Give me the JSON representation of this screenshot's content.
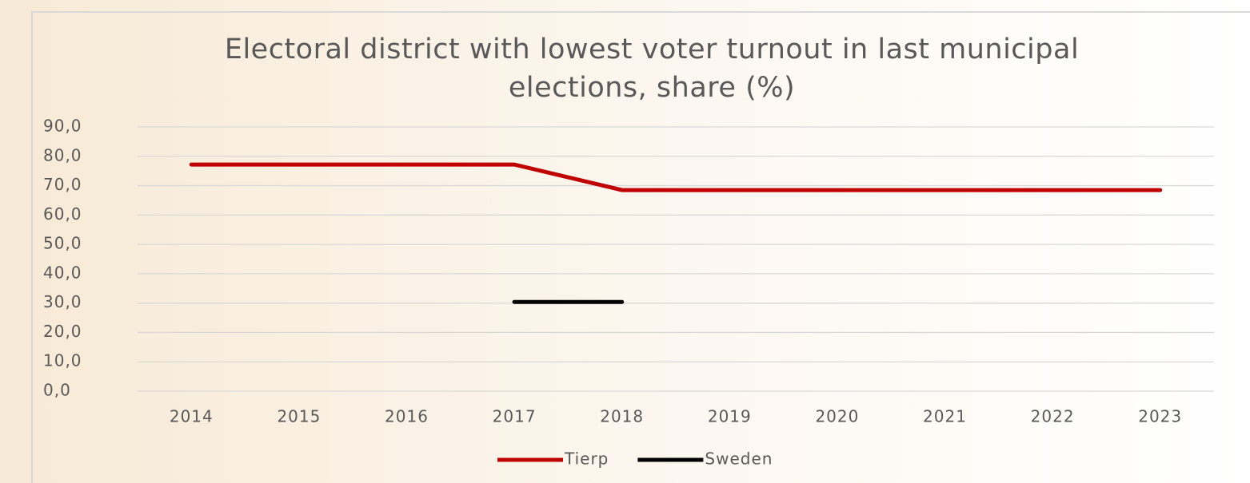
{
  "chart_data": {
    "type": "line",
    "title": "Electoral district with lowest voter turnout in last municipal elections, share (%)",
    "categories": [
      "2014",
      "2015",
      "2016",
      "2017",
      "2018",
      "2019",
      "2020",
      "2021",
      "2022",
      "2023"
    ],
    "series": [
      {
        "name": "Tierp",
        "color": "#c00000",
        "values": [
          77.2,
          77.2,
          77.2,
          77.2,
          68.5,
          68.5,
          68.5,
          68.5,
          68.5,
          68.5
        ]
      },
      {
        "name": "Sweden",
        "color": "#000000",
        "values": [
          null,
          null,
          null,
          30.4,
          30.4,
          null,
          null,
          null,
          null,
          null
        ]
      }
    ],
    "ylim": [
      0,
      90
    ],
    "yticks": [
      {
        "value": 0,
        "label": "0,0"
      },
      {
        "value": 10,
        "label": "10,0"
      },
      {
        "value": 20,
        "label": "20,0"
      },
      {
        "value": 30,
        "label": "30,0"
      },
      {
        "value": 40,
        "label": "40,0"
      },
      {
        "value": 50,
        "label": "50,0"
      },
      {
        "value": 60,
        "label": "60,0"
      },
      {
        "value": 70,
        "label": "70,0"
      },
      {
        "value": 80,
        "label": "80,0"
      },
      {
        "value": 90,
        "label": "90,0"
      }
    ],
    "grid": true,
    "legend": "bottom"
  }
}
